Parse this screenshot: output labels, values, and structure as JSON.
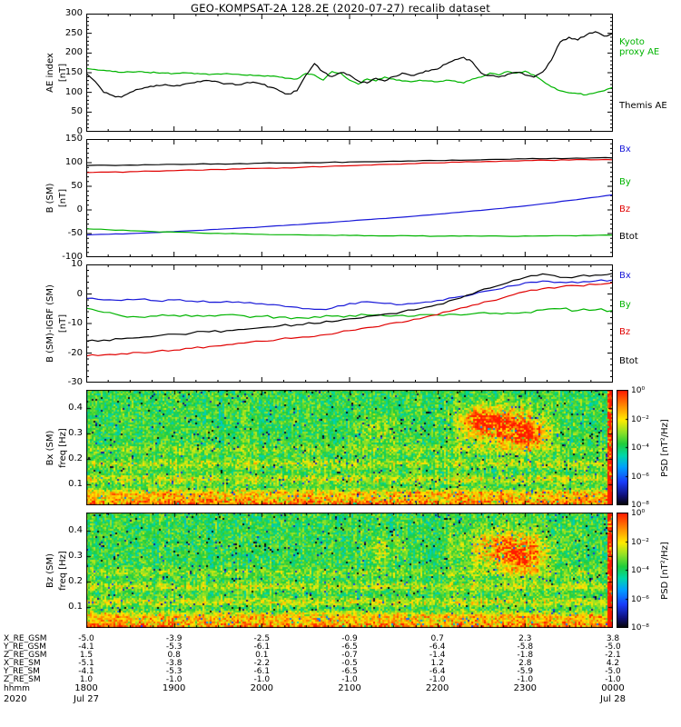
{
  "title": "GEO-KOMPSAT-2A 128.2E (2020-07-27) recalib dataset",
  "chart_data": [
    {
      "id": "ae",
      "type": "line",
      "title": "AE index panel",
      "ylabel_lines": [
        "AE index",
        "[nT]"
      ],
      "ylim": [
        0,
        300
      ],
      "yticks": [
        0,
        50,
        100,
        150,
        200,
        250,
        300
      ],
      "yminor": 10,
      "xlim": [
        18,
        24
      ],
      "series": [
        {
          "name": "Kyoto proxy AE",
          "color": "#00b400",
          "t0": 18,
          "dt": 0.1,
          "jitter": 1.5,
          "seed": 21,
          "values": [
            161,
            158,
            156,
            153,
            151,
            152,
            153,
            151,
            150,
            149,
            148,
            150,
            149,
            147,
            145,
            147,
            148,
            146,
            144,
            143,
            142,
            141,
            139,
            136,
            134,
            148,
            144,
            131,
            153,
            149,
            131,
            121,
            134,
            129,
            139,
            134,
            129,
            127,
            131,
            129,
            127,
            131,
            129,
            124,
            134,
            139,
            149,
            144,
            153,
            149,
            154,
            144,
            129,
            114,
            104,
            99,
            97,
            94,
            99,
            104,
            113
          ]
        },
        {
          "name": "Themis AE",
          "color": "#000000",
          "t0": 18,
          "dt": 0.1,
          "jitter": 2.5,
          "seed": 11,
          "values": [
            148,
            128,
            100,
            92,
            88,
            100,
            108,
            113,
            118,
            120,
            116,
            120,
            124,
            127,
            130,
            127,
            122,
            119,
            123,
            126,
            121,
            113,
            104,
            96,
            104,
            143,
            173,
            152,
            140,
            150,
            144,
            129,
            124,
            136,
            129,
            140,
            149,
            143,
            149,
            154,
            159,
            172,
            183,
            189,
            177,
            149,
            143,
            139,
            146,
            151,
            144,
            139,
            152,
            182,
            228,
            240,
            233,
            246,
            254,
            243,
            250
          ]
        }
      ],
      "legend": [
        {
          "lines": [
            "Kyoto",
            "proxy AE"
          ],
          "color": "#00b400"
        },
        {
          "lines": [
            "Themis AE"
          ],
          "color": "#000000"
        }
      ]
    },
    {
      "id": "bsm",
      "type": "line",
      "title": "B (SM) panel",
      "ylabel_lines": [
        "B (SM)",
        "[nT]"
      ],
      "ylim": [
        -100,
        150
      ],
      "yticks": [
        -100,
        -50,
        0,
        50,
        100,
        150
      ],
      "yminor": 10,
      "xlim": [
        18,
        24
      ],
      "series": [
        {
          "name": "Bx",
          "color": "#1818d8",
          "t0": 18,
          "dt": 0.25,
          "jitter": 0.5,
          "seed": 31,
          "values": [
            -53,
            -51.5,
            -50,
            -48,
            -46,
            -43.5,
            -41,
            -38.5,
            -36,
            -33,
            -30,
            -27,
            -23.5,
            -20,
            -16.5,
            -13,
            -9,
            -5,
            -1,
            3.5,
            8.5,
            14,
            20,
            26,
            32
          ]
        },
        {
          "name": "By",
          "color": "#00b400",
          "t0": 18,
          "dt": 0.25,
          "jitter": 0.8,
          "seed": 32,
          "values": [
            -40,
            -42,
            -44,
            -45.5,
            -47,
            -48.5,
            -49.5,
            -50.5,
            -51.5,
            -52.5,
            -53,
            -53.5,
            -54,
            -54.5,
            -55,
            -55,
            -55.5,
            -55.5,
            -55.5,
            -55.5,
            -55,
            -55,
            -54.5,
            -54,
            -53.5
          ]
        },
        {
          "name": "Bz",
          "color": "#e00000",
          "t0": 18,
          "dt": 0.25,
          "jitter": 1.0,
          "seed": 33,
          "values": [
            79,
            80,
            81,
            82,
            83,
            84,
            85.5,
            86.5,
            88,
            89,
            90.5,
            92,
            93.5,
            95,
            96.5,
            98,
            99.5,
            101,
            102,
            103.5,
            104.5,
            105,
            105.5,
            106,
            106
          ]
        },
        {
          "name": "Btot",
          "color": "#000000",
          "t0": 18,
          "dt": 0.25,
          "jitter": 0.8,
          "seed": 34,
          "values": [
            94,
            94.5,
            95,
            95.5,
            96.5,
            97,
            97.5,
            98,
            99,
            99.5,
            100,
            100.5,
            101.5,
            102,
            103,
            103.5,
            104.5,
            105,
            106,
            107,
            108,
            108.5,
            109,
            110,
            110
          ]
        }
      ],
      "legend": [
        {
          "lines": [
            "Bx"
          ],
          "color": "#1818d8"
        },
        {
          "lines": [
            "By"
          ],
          "color": "#00b400"
        },
        {
          "lines": [
            "Bz"
          ],
          "color": "#e00000"
        },
        {
          "lines": [
            "Btot"
          ],
          "color": "#000000"
        }
      ]
    },
    {
      "id": "bigrf",
      "type": "line",
      "title": "B (SM) - IGRF (SM) panel",
      "ylabel_lines": [
        "B (SM)-IGRF (SM)",
        "[nT]"
      ],
      "ylim": [
        -30,
        10
      ],
      "yticks": [
        -30,
        -20,
        -10,
        0,
        10
      ],
      "yminor": 2,
      "xlim": [
        18,
        24
      ],
      "series": [
        {
          "name": "Bx",
          "color": "#1818d8",
          "t0": 18,
          "dt": 0.2,
          "jitter": 0.35,
          "seed": 41,
          "values": [
            -1.5,
            -2,
            -2.2,
            -1.8,
            -2.3,
            -2,
            -2.4,
            -2.8,
            -2.5,
            -3,
            -3.3,
            -3.8,
            -4.5,
            -5.2,
            -4.8,
            -3.2,
            -2.6,
            -3.2,
            -3.6,
            -3,
            -2.2,
            -1.2,
            -0.2,
            1.2,
            2.6,
            3.8,
            4.4,
            4,
            3.8,
            4.4,
            4.8
          ]
        },
        {
          "name": "By",
          "color": "#00b400",
          "t0": 18,
          "dt": 0.2,
          "jitter": 0.5,
          "seed": 42,
          "values": [
            -4.8,
            -6.2,
            -7.4,
            -7.8,
            -7.5,
            -7.2,
            -7.6,
            -7.3,
            -7,
            -7.4,
            -7.6,
            -7.8,
            -8,
            -7.7,
            -7.5,
            -7.3,
            -7.1,
            -7.4,
            -7.2,
            -7,
            -7.1,
            -6.9,
            -6.7,
            -6.6,
            -6.4,
            -6.2,
            -5.4,
            -5,
            -5.6,
            -5.4,
            -5.6
          ]
        },
        {
          "name": "Bz",
          "color": "#e00000",
          "t0": 18,
          "dt": 0.2,
          "jitter": 0.3,
          "seed": 43,
          "values": [
            -21,
            -20.6,
            -20.2,
            -19.8,
            -19.4,
            -19,
            -18.4,
            -17.8,
            -17.2,
            -16.6,
            -16,
            -15.3,
            -14.8,
            -14.4,
            -13.6,
            -12.4,
            -11.4,
            -10.4,
            -9.6,
            -8.4,
            -7,
            -5.4,
            -3.8,
            -2.4,
            -0.8,
            0.8,
            1.8,
            2.4,
            2.8,
            3.2,
            3.8
          ]
        },
        {
          "name": "Btot",
          "color": "#000000",
          "t0": 18,
          "dt": 0.2,
          "jitter": 0.4,
          "seed": 44,
          "values": [
            -16,
            -15.6,
            -15.2,
            -14.8,
            -14.2,
            -13.6,
            -13.2,
            -12.8,
            -12.4,
            -12,
            -11.4,
            -10.8,
            -10.4,
            -10,
            -9.4,
            -8.4,
            -7.6,
            -6.8,
            -6,
            -5,
            -3.6,
            -1.8,
            0,
            2,
            3.8,
            5.6,
            6.8,
            5.6,
            6,
            6.4,
            7
          ]
        }
      ],
      "legend": [
        {
          "lines": [
            "Bx"
          ],
          "color": "#1818d8"
        },
        {
          "lines": [
            "By"
          ],
          "color": "#00b400"
        },
        {
          "lines": [
            "Bz"
          ],
          "color": "#e00000"
        },
        {
          "lines": [
            "Btot"
          ],
          "color": "#000000"
        }
      ]
    },
    {
      "id": "specbx",
      "type": "heatmap",
      "title": "Bx (SM) power spectral density spectrogram",
      "ylabel_lines": [
        "Bx (SM)",
        "freq [Hz]"
      ],
      "flim": [
        0.02,
        0.47
      ],
      "yticks": [
        0.1,
        0.2,
        0.3,
        0.4
      ],
      "xlim": [
        18,
        24
      ],
      "spec": {
        "seed": 7,
        "base": 0.54,
        "noise": 0.12,
        "stripe": 0.05,
        "bands": [
          {
            "f": 0.03,
            "amp": 0.32,
            "sigma": 0.02
          },
          {
            "f": 0.07,
            "amp": 0.2,
            "sigma": 0.012
          },
          {
            "f": 0.125,
            "amp": 0.15,
            "sigma": 0.012
          },
          {
            "f": 0.185,
            "amp": 0.12,
            "sigma": 0.012
          },
          {
            "f": 0.24,
            "amp": 0.08,
            "sigma": 0.012
          }
        ],
        "blobs": [
          {
            "t": 22.75,
            "f": 0.33,
            "amp": 0.5,
            "st": 0.3,
            "sf": 0.05
          },
          {
            "t": 23.05,
            "f": 0.29,
            "amp": 0.3,
            "st": 0.12,
            "sf": 0.035
          },
          {
            "t": 22.45,
            "f": 0.36,
            "amp": 0.3,
            "st": 0.1,
            "sf": 0.03
          },
          {
            "t": 21.35,
            "f": 0.32,
            "amp": 0.15,
            "st": 0.15,
            "sf": 0.04
          }
        ],
        "right_edge": {
          "t0": 23.93,
          "amp": 0.5
        },
        "dark_speckle": 0.03
      }
    },
    {
      "id": "specbz",
      "type": "heatmap",
      "title": "Bz (SM) power spectral density spectrogram",
      "ylabel_lines": [
        "Bz (SM)",
        "freq [Hz]"
      ],
      "flim": [
        0.02,
        0.47
      ],
      "yticks": [
        0.1,
        0.2,
        0.3,
        0.4
      ],
      "xlim": [
        18,
        24
      ],
      "spec": {
        "seed": 13,
        "base": 0.54,
        "noise": 0.12,
        "stripe": 0.05,
        "bands": [
          {
            "f": 0.03,
            "amp": 0.32,
            "sigma": 0.02
          },
          {
            "f": 0.07,
            "amp": 0.2,
            "sigma": 0.012
          },
          {
            "f": 0.125,
            "amp": 0.15,
            "sigma": 0.012
          },
          {
            "f": 0.185,
            "amp": 0.12,
            "sigma": 0.012
          },
          {
            "f": 0.24,
            "amp": 0.08,
            "sigma": 0.012
          }
        ],
        "blobs": [
          {
            "t": 22.8,
            "f": 0.33,
            "amp": 0.42,
            "st": 0.28,
            "sf": 0.05
          },
          {
            "t": 23.0,
            "f": 0.28,
            "amp": 0.25,
            "st": 0.12,
            "sf": 0.035
          },
          {
            "t": 21.4,
            "f": 0.33,
            "amp": 0.12,
            "st": 0.15,
            "sf": 0.04
          }
        ],
        "right_edge": {
          "t0": 23.93,
          "amp": 0.5
        },
        "dark_speckle": 0.03
      }
    }
  ],
  "colorbar": {
    "labels": [
      "10⁰",
      "10⁻²",
      "10⁻⁴",
      "10⁻⁶",
      "10⁻⁸"
    ],
    "title": "PSD [nT²/Hz]"
  },
  "ephemeris": {
    "rows": [
      {
        "label": "X_RE_GSM",
        "values": [
          "-5.0",
          "-3.9",
          "-2.5",
          "-0.9",
          "0.7",
          "2.3",
          "3.8"
        ]
      },
      {
        "label": "Y_RE_GSM",
        "values": [
          "-4.1",
          "-5.3",
          "-6.1",
          "-6.5",
          "-6.4",
          "-5.8",
          "-5.0"
        ]
      },
      {
        "label": "Z_RE_GSM",
        "values": [
          "1.5",
          "0.8",
          "0.1",
          "-0.7",
          "-1.4",
          "-1.8",
          "-2.1"
        ]
      },
      {
        "label": "X_RE_SM",
        "values": [
          "-5.1",
          "-3.8",
          "-2.2",
          "-0.5",
          "1.2",
          "2.8",
          "4.2"
        ]
      },
      {
        "label": "Y_RE_SM",
        "values": [
          "-4.1",
          "-5.3",
          "-6.1",
          "-6.5",
          "-6.4",
          "-5.9",
          "-5.0"
        ]
      },
      {
        "label": "Z_RE_SM",
        "values": [
          "1.0",
          "-1.0",
          "-1.0",
          "-1.0",
          "-1.0",
          "-1.0",
          "-1.0"
        ]
      }
    ],
    "time_label": "hhmm",
    "times": [
      "1800",
      "1900",
      "2000",
      "2100",
      "2200",
      "2300",
      "0000"
    ],
    "year": "2020",
    "date_left": "Jul 27",
    "date_right": "Jul 28"
  }
}
